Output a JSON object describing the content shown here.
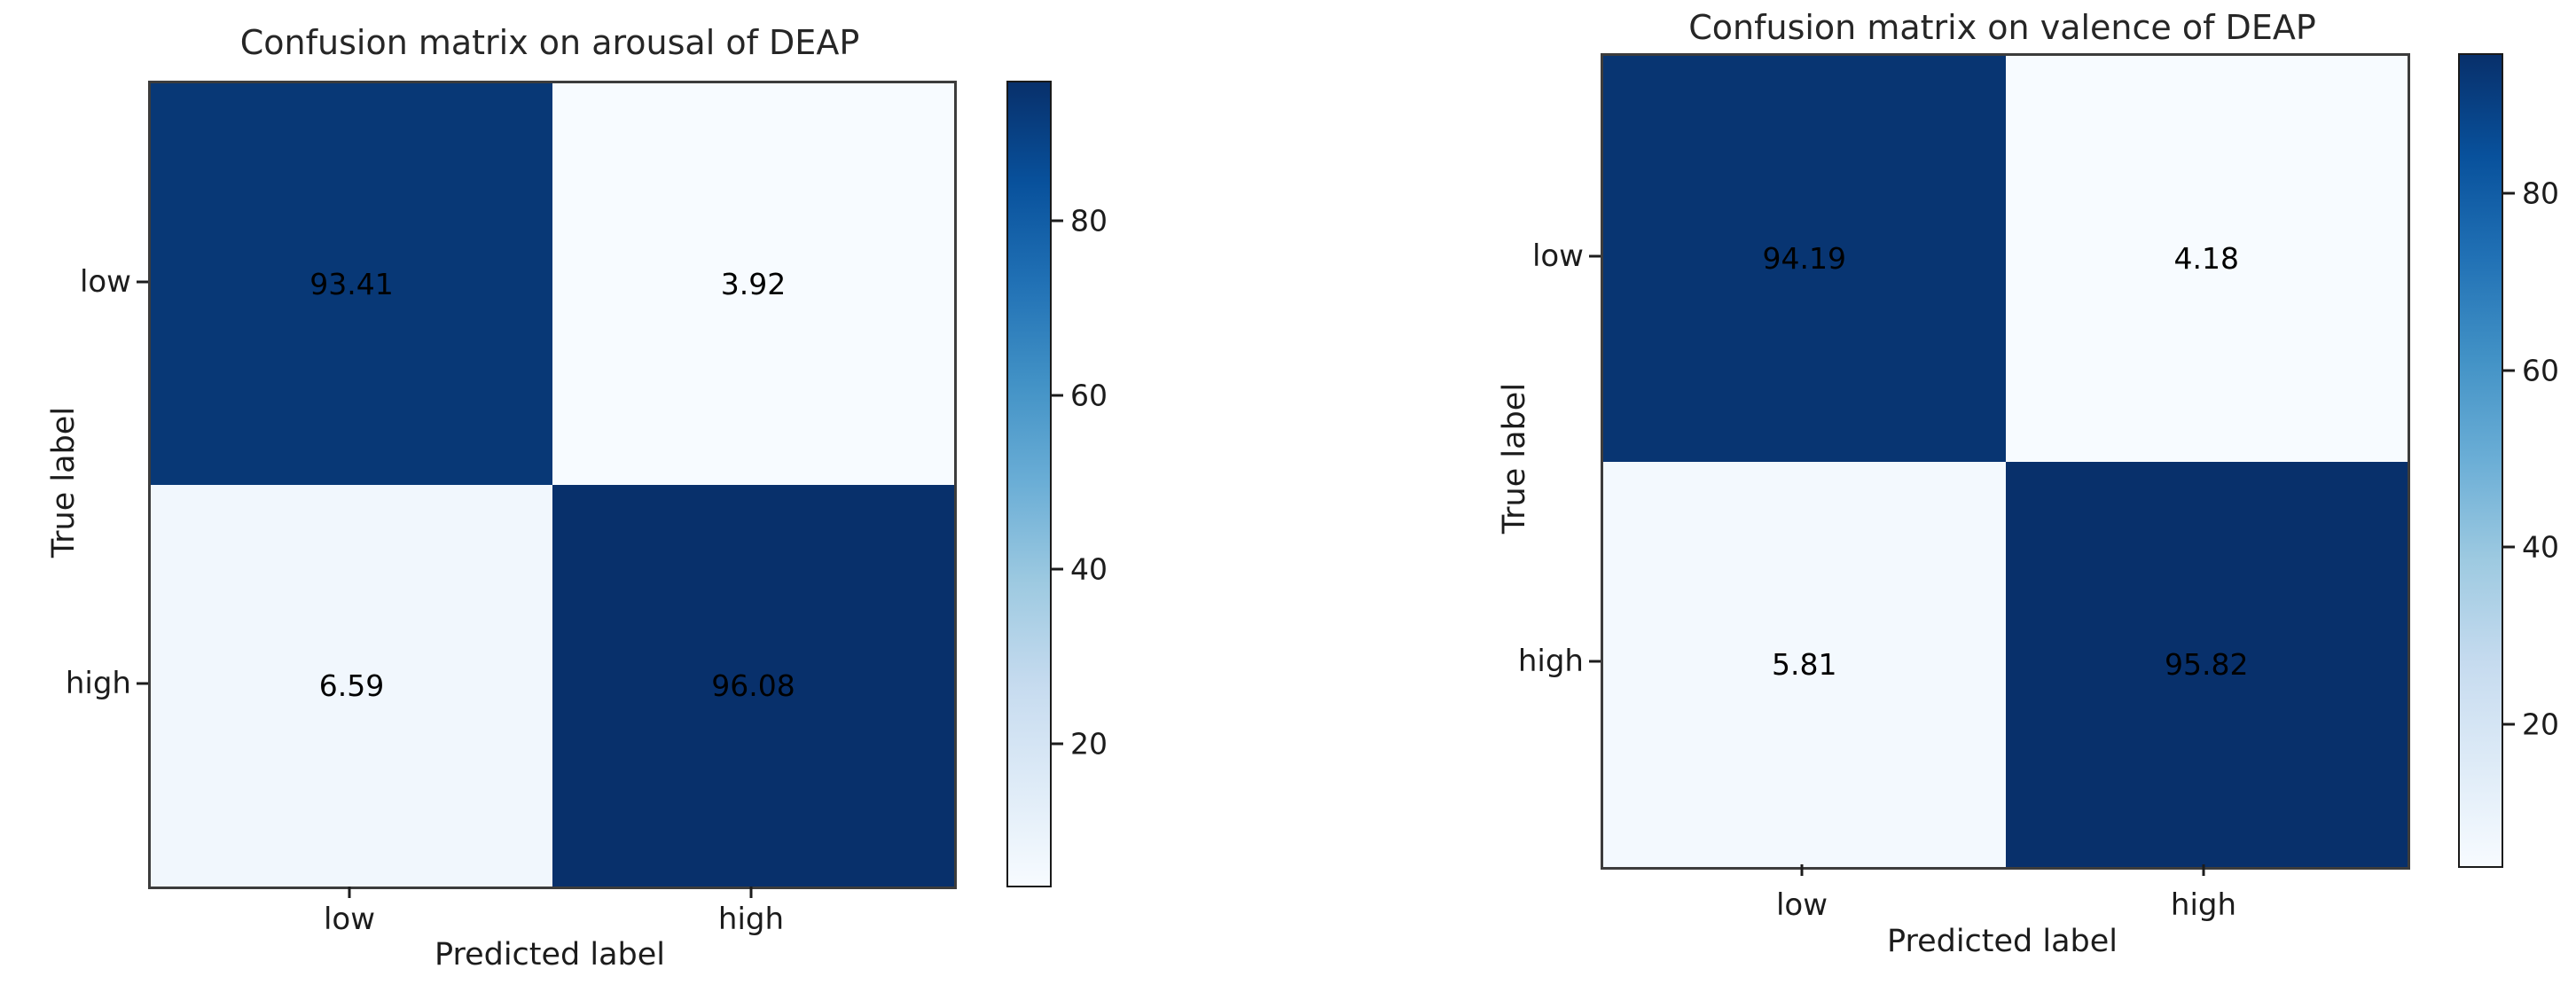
{
  "page": {
    "background": "#ffffff",
    "colormap_name": "Blues",
    "accent_dark": "#08306b",
    "accent_light": "#f7fbff",
    "text_color": "#1c1c1c"
  },
  "chart_data": [
    {
      "type": "heatmap",
      "title": "Confusion matrix on arousal of DEAP",
      "xlabel": "Predicted label",
      "ylabel": "True label",
      "x_categories": [
        "low",
        "high"
      ],
      "y_categories": [
        "low",
        "high"
      ],
      "values": [
        [
          93.41,
          3.92
        ],
        [
          6.59,
          96.08
        ]
      ],
      "value_unit": "percent",
      "colormap": "Blues",
      "colorbar_ticks": [
        20,
        40,
        60,
        80
      ],
      "color_scale_min": 3.92,
      "color_scale_max": 96.08,
      "grid": false,
      "legend": "colorbar-right"
    },
    {
      "type": "heatmap",
      "title": "Confusion matrix on valence of DEAP",
      "xlabel": "Predicted label",
      "ylabel": "True label",
      "x_categories": [
        "low",
        "high"
      ],
      "y_categories": [
        "low",
        "high"
      ],
      "values": [
        [
          94.19,
          4.18
        ],
        [
          5.81,
          95.82
        ]
      ],
      "value_unit": "percent",
      "colormap": "Blues",
      "colorbar_ticks": [
        20,
        40,
        60,
        80
      ],
      "color_scale_min": 4.18,
      "color_scale_max": 95.82,
      "grid": false,
      "legend": "colorbar-right"
    }
  ]
}
